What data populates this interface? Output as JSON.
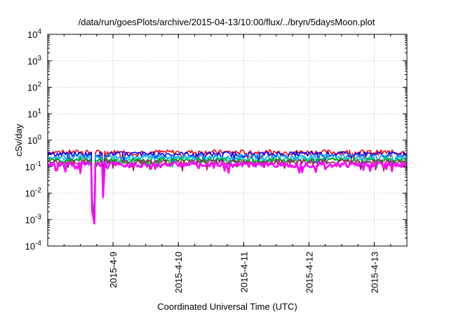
{
  "chart_data": {
    "type": "line",
    "title": "/data/run/goesPlots/archive/2015-04-13/10:00/flux/../bryn/5daysMoon.plot",
    "xlabel": "Coordinated Universal Time (UTC)",
    "ylabel": "cSv/day",
    "yscale": "log",
    "ylim": [
      0.0001,
      10000
    ],
    "xlim": [
      "2015-04-08 00:00",
      "2015-04-13 12:00"
    ],
    "grid": true,
    "y_ticks": [
      {
        "value": 0.0001,
        "mantissa": "10",
        "exp": "-4"
      },
      {
        "value": 0.001,
        "mantissa": "10",
        "exp": "-3"
      },
      {
        "value": 0.01,
        "mantissa": "10",
        "exp": "-2"
      },
      {
        "value": 0.1,
        "mantissa": "10",
        "exp": "-1"
      },
      {
        "value": 1,
        "mantissa": "10",
        "exp": "0"
      },
      {
        "value": 10,
        "mantissa": "10",
        "exp": "1"
      },
      {
        "value": 100,
        "mantissa": "10",
        "exp": "2"
      },
      {
        "value": 1000,
        "mantissa": "10",
        "exp": "3"
      },
      {
        "value": 10000,
        "mantissa": "10",
        "exp": "4"
      }
    ],
    "x_ticks": [
      {
        "label": "2015-4-9",
        "date": "2015-04-09"
      },
      {
        "label": "2015-4-10",
        "date": "2015-04-10"
      },
      {
        "label": "2015-4-11",
        "date": "2015-04-11"
      },
      {
        "label": "2015-4-12",
        "date": "2015-04-12"
      },
      {
        "label": "2015-4-13",
        "date": "2015-04-13"
      }
    ],
    "series": [
      {
        "color": "#ff0000",
        "baseline": 0.35,
        "dips": [
          {
            "x": "2015-04-08 16:20",
            "y": 0.006
          },
          {
            "x": "2015-04-08 17:10",
            "y": 0.0015
          },
          {
            "x": "2015-04-08 20:20",
            "y": 0.05
          }
        ]
      },
      {
        "color": "#0000ff",
        "baseline": 0.3,
        "dips": [
          {
            "x": "2015-04-08 16:20",
            "y": 0.005
          },
          {
            "x": "2015-04-08 17:10",
            "y": 0.0012
          },
          {
            "x": "2015-04-08 20:20",
            "y": 0.04
          }
        ]
      },
      {
        "color": "#00a0ff",
        "baseline": 0.24,
        "dips": [
          {
            "x": "2015-04-08 16:20",
            "y": 0.007
          },
          {
            "x": "2015-04-08 17:10",
            "y": 0.0013
          },
          {
            "x": "2015-04-08 20:20",
            "y": 0.03
          }
        ]
      },
      {
        "color": "#00d0c0",
        "baseline": 0.19,
        "dips": [
          {
            "x": "2015-04-08 16:20",
            "y": 0.004
          },
          {
            "x": "2015-04-08 17:10",
            "y": 0.001
          },
          {
            "x": "2015-04-08 20:20",
            "y": 0.02
          }
        ]
      },
      {
        "color": "#00a000",
        "baseline": 0.17,
        "dips": [
          {
            "x": "2015-04-08 16:20",
            "y": 0.004
          },
          {
            "x": "2015-04-08 17:10",
            "y": 0.001
          },
          {
            "x": "2015-04-08 20:20",
            "y": 0.02
          }
        ]
      },
      {
        "color": "#a02060",
        "baseline": 0.15,
        "dips": [
          {
            "x": "2015-04-08 16:20",
            "y": 0.003
          },
          {
            "x": "2015-04-08 17:10",
            "y": 0.0009
          },
          {
            "x": "2015-04-08 20:20",
            "y": 0.012
          }
        ]
      },
      {
        "color": "#ff00ff",
        "baseline": 0.12,
        "dips": [
          {
            "x": "2015-04-08 16:20",
            "y": 0.002
          },
          {
            "x": "2015-04-08 17:10",
            "y": 0.0007
          },
          {
            "x": "2015-04-08 20:20",
            "y": 0.007
          }
        ]
      }
    ]
  }
}
